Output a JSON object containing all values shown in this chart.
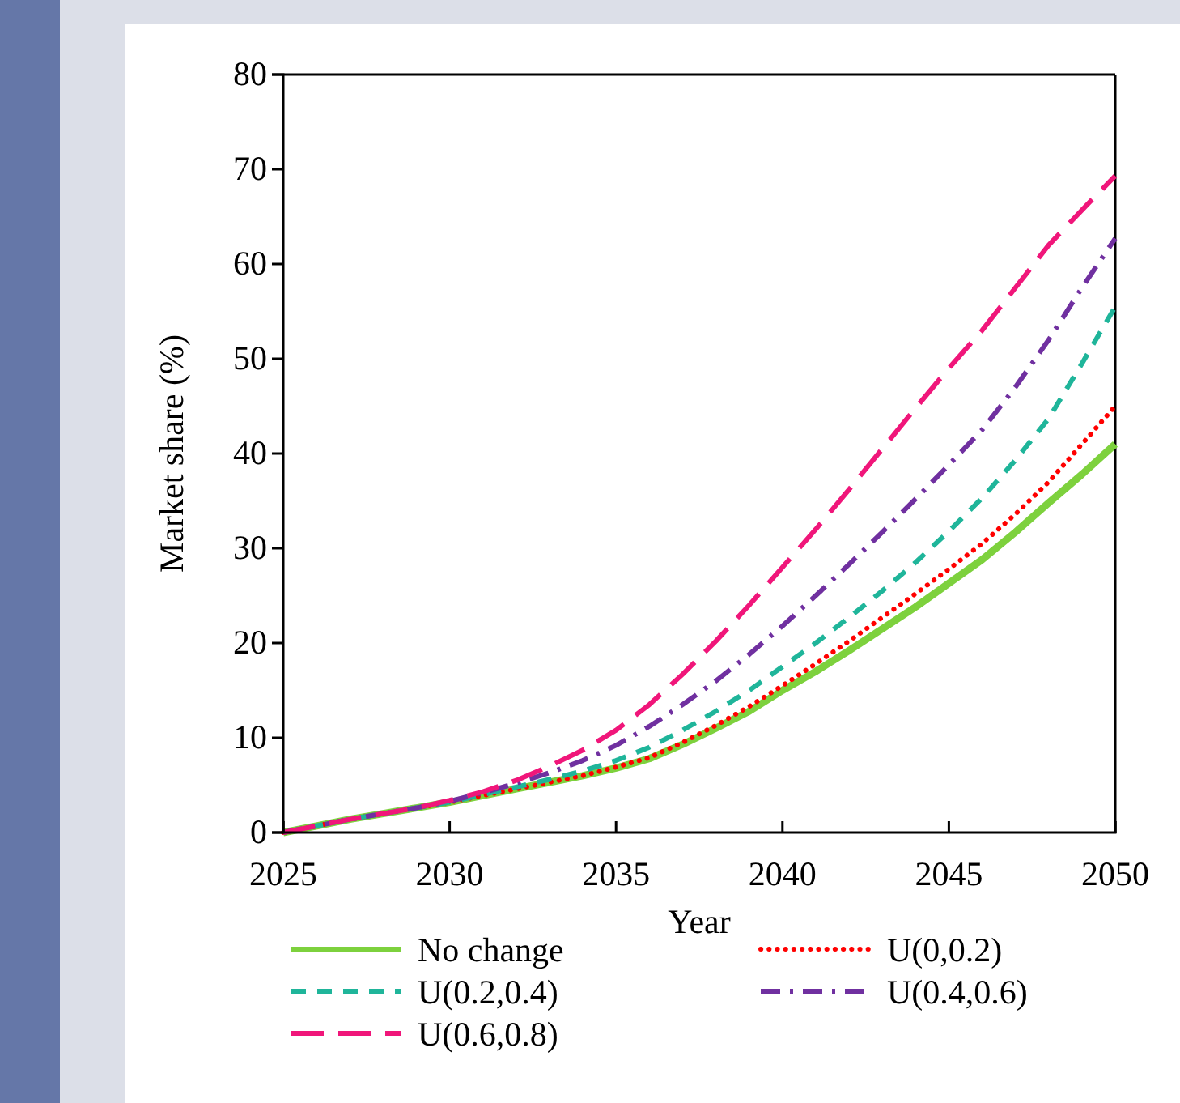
{
  "chart_data": {
    "type": "line",
    "xlabel": "Year",
    "ylabel": "Market share (%)",
    "x": [
      2025,
      2026,
      2027,
      2028,
      2029,
      2030,
      2031,
      2032,
      2033,
      2034,
      2035,
      2036,
      2037,
      2038,
      2039,
      2040,
      2041,
      2042,
      2043,
      2044,
      2045,
      2046,
      2047,
      2048,
      2049,
      2050
    ],
    "series": [
      {
        "name": "No change",
        "color": "#7dd13d",
        "line_style": "solid",
        "values": [
          0,
          0.7,
          1.4,
          2,
          2.6,
          3.2,
          3.9,
          4.6,
          5.3,
          6,
          6.8,
          7.8,
          9.3,
          11,
          12.8,
          15,
          17,
          19.2,
          21.5,
          23.8,
          26.3,
          28.8,
          31.7,
          34.8,
          37.8,
          41
        ]
      },
      {
        "name": "U(0,0.2)",
        "color": "#ff0000",
        "line_style": "dotted",
        "values": [
          0,
          0.7,
          1.4,
          2,
          2.6,
          3.2,
          3.9,
          4.6,
          5.3,
          6,
          6.9,
          7.9,
          9.5,
          11.3,
          13.3,
          15.5,
          17.8,
          20.2,
          22.7,
          25.2,
          27.8,
          30.5,
          33.6,
          37,
          41,
          45
        ]
      },
      {
        "name": "U(0.2,0.4)",
        "color": "#1fb59a",
        "line_style": "dashed",
        "values": [
          0,
          0.7,
          1.4,
          2,
          2.6,
          3.2,
          4,
          4.8,
          5.6,
          6.5,
          7.6,
          9,
          10.8,
          12.8,
          15,
          17.5,
          20,
          22.7,
          25.5,
          28.5,
          31.8,
          35.3,
          39.3,
          43.7,
          49.5,
          55.5
        ]
      },
      {
        "name": "U(0.4,0.6)",
        "color": "#7030a0",
        "line_style": "dashed",
        "values": [
          0,
          0.7,
          1.4,
          2,
          2.6,
          3.3,
          4.2,
          5.2,
          6.3,
          7.6,
          9.2,
          11.2,
          13.5,
          16,
          18.8,
          21.8,
          25,
          28.3,
          31.7,
          35.2,
          38.8,
          42.5,
          47,
          52,
          57.5,
          62.7
        ]
      },
      {
        "name": "U(0.6,0.8)",
        "color": "#f0167a",
        "line_style": "dashed",
        "values": [
          0,
          0.7,
          1.4,
          2,
          2.6,
          3.4,
          4.3,
          5.5,
          7,
          8.7,
          10.8,
          13.5,
          16.7,
          20.2,
          24,
          28,
          32,
          36.2,
          40.5,
          44.8,
          49,
          53,
          57.5,
          62,
          65.7,
          69.3
        ]
      }
    ],
    "xlim": [
      2025,
      2050
    ],
    "xticks": [
      2025,
      2030,
      2035,
      2040,
      2045,
      2050
    ],
    "ylim": [
      0,
      80
    ],
    "yticks": [
      0,
      10,
      20,
      30,
      40,
      50,
      60,
      70,
      80
    ],
    "grid": false,
    "legend": "bottom"
  }
}
